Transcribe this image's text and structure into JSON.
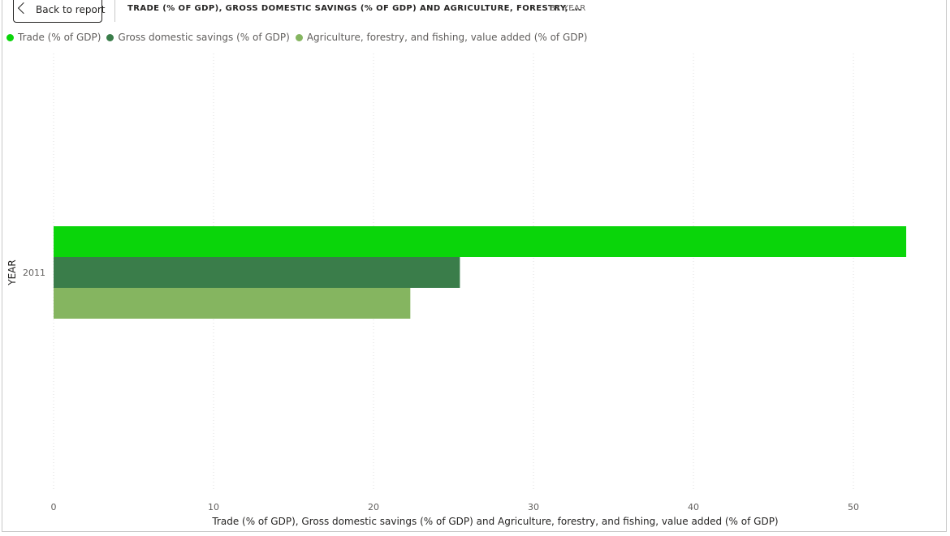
{
  "header": {
    "back_label": "Back to report",
    "title": "TRADE (% OF GDP), GROSS DOMESTIC SAVINGS (% OF GDP) AND AGRICULTURE, FORESTRY, ...",
    "subtitle": "BY YEAR"
  },
  "colors": {
    "trade": "#0ad50a",
    "savings": "#3a7d4a",
    "agriculture": "#85b560",
    "grid": "#dedede",
    "text": "#605e5c"
  },
  "chart_data": {
    "type": "bar",
    "orientation": "horizontal",
    "categories": [
      "2011"
    ],
    "series": [
      {
        "name": "Trade (% of GDP)",
        "values": [
          53.3
        ],
        "color": "#0ad50a"
      },
      {
        "name": "Gross domestic savings (% of GDP)",
        "values": [
          25.4
        ],
        "color": "#3a7d4a"
      },
      {
        "name": "Agriculture, forestry, and fishing, value added (% of GDP)",
        "values": [
          22.3
        ],
        "color": "#85b560"
      }
    ],
    "x_ticks": [
      0,
      10,
      20,
      30,
      40,
      50
    ],
    "xlim": [
      0,
      53.5
    ],
    "xlabel": "Trade (% of GDP), Gross domestic savings (% of GDP) and Agriculture, forestry, and fishing, value added (% of GDP)",
    "ylabel": "YEAR",
    "grid": true,
    "legend_position": "top-left"
  }
}
